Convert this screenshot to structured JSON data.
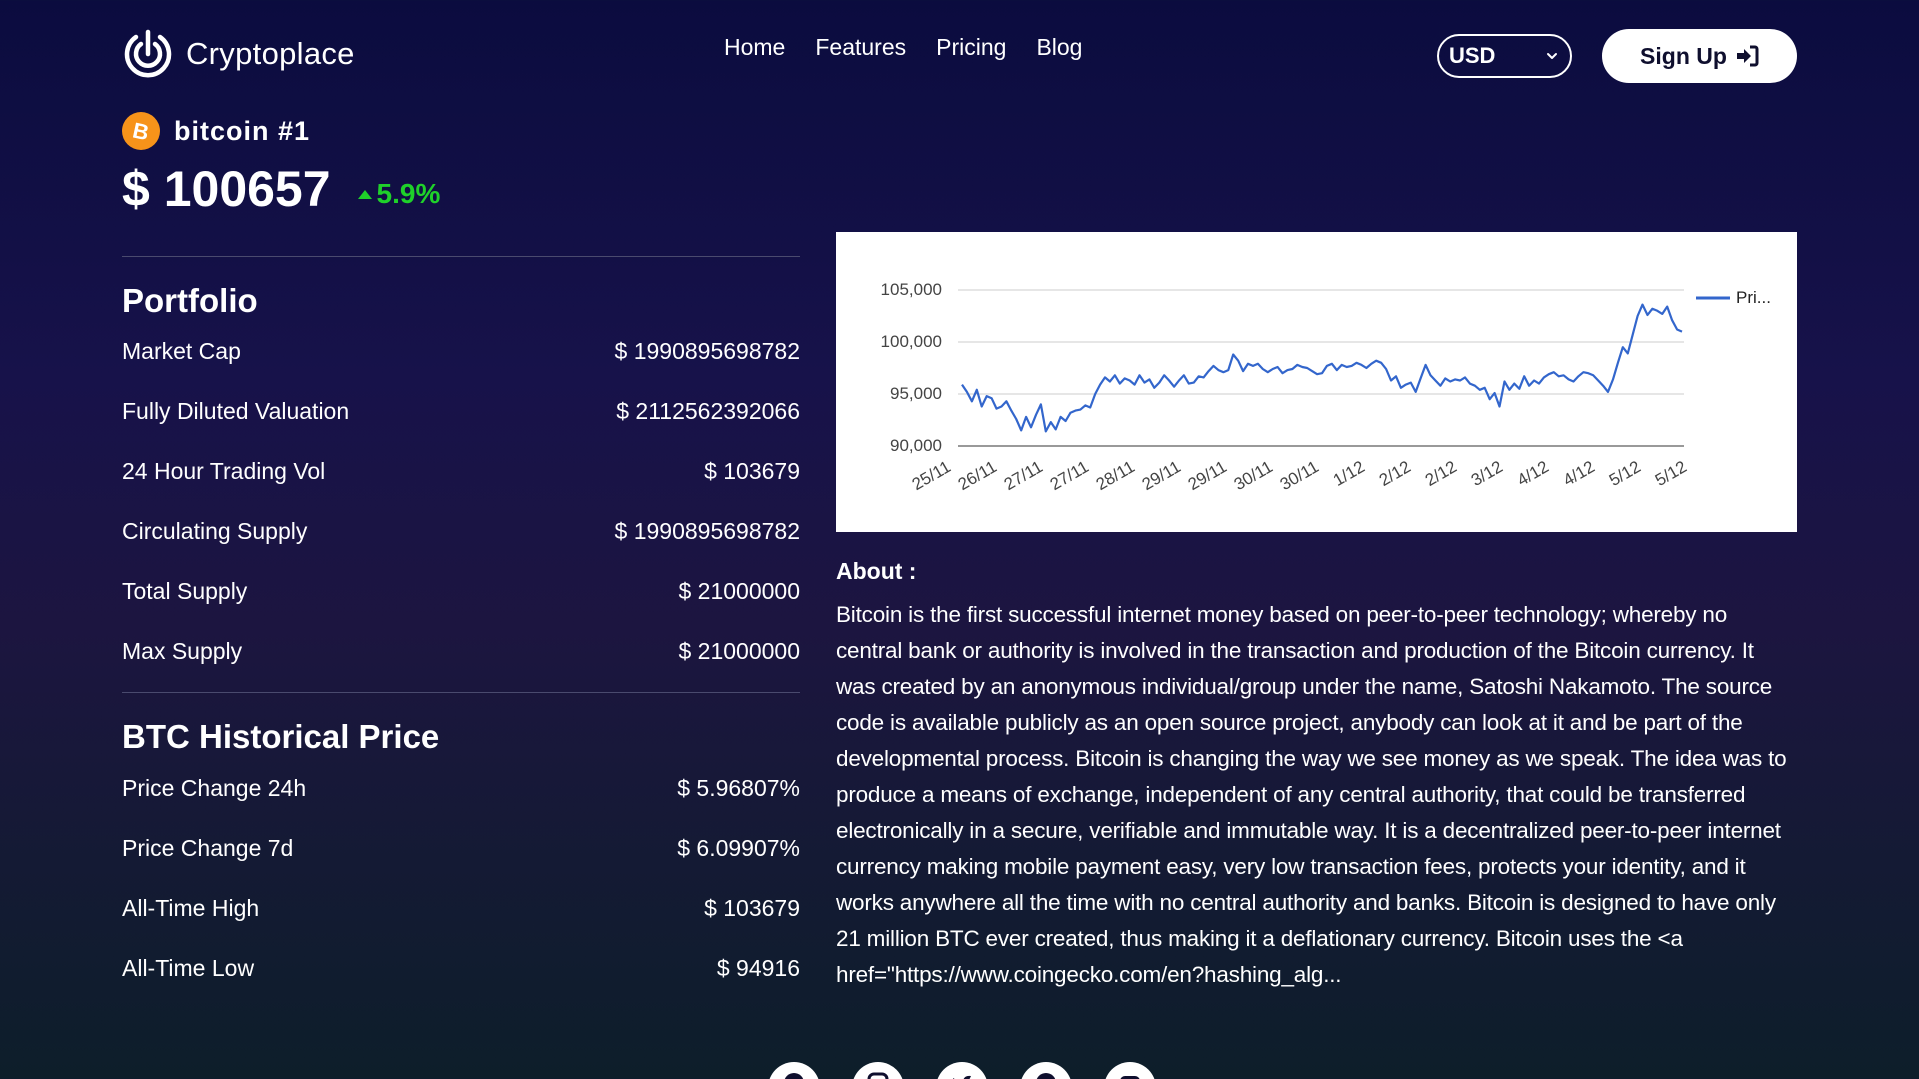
{
  "header": {
    "logo_text": "Cryptoplace",
    "nav": [
      "Home",
      "Features",
      "Pricing",
      "Blog"
    ],
    "currency": "USD",
    "signup_label": "Sign Up"
  },
  "coin": {
    "name": "bitcoin #1",
    "icon": "bitcoin-icon",
    "price": "$ 100657",
    "change": "5.9%",
    "change_color": "#1fd12a"
  },
  "portfolio": {
    "title": "Portfolio",
    "rows": [
      {
        "label": "Market Cap",
        "value": "$ 1990895698782"
      },
      {
        "label": "Fully Diluted Valuation",
        "value": "$ 2112562392066"
      },
      {
        "label": "24 Hour Trading Vol",
        "value": "$ 103679"
      },
      {
        "label": "Circulating Supply",
        "value": "$ 1990895698782"
      },
      {
        "label": "Total Supply",
        "value": "$ 21000000"
      },
      {
        "label": "Max Supply",
        "value": "$ 21000000"
      }
    ]
  },
  "history": {
    "title": "BTC Historical Price",
    "rows": [
      {
        "label": "Price Change 24h",
        "value": "$ 5.96807%"
      },
      {
        "label": "Price Change 7d",
        "value": "$ 6.09907%"
      },
      {
        "label": "All-Time High",
        "value": "$ 103679"
      },
      {
        "label": "All-Time Low",
        "value": "$ 94916"
      }
    ]
  },
  "about": {
    "title": "About :",
    "text": "Bitcoin is the first successful internet money based on peer-to-peer technology; whereby no central bank or authority is involved in the transaction and production of the Bitcoin currency. It was created by an anonymous individual/group under the name, Satoshi Nakamoto. The source code is available publicly as an open source project, anybody can look at it and be part of the developmental process.  Bitcoin is changing the way we see money as we speak. The idea was to produce a means of exchange, independent of any central authority, that could be transferred electronically in a secure, verifiable and immutable way. It is a decentralized peer-to-peer internet currency making mobile payment easy, very low transaction fees, protects your identity, and it works anywhere all the time with no central authority and banks.  Bitcoin is designed to have only 21 million BTC ever created, thus making it a deflationary currency. Bitcoin uses the <a href=\"https://www.coingecko.com/en?hashing_alg..."
  },
  "socials": [
    "facebook-icon",
    "instagram-icon",
    "twitter-icon",
    "pinterest-icon",
    "youtube-icon"
  ],
  "chart_data": {
    "type": "line",
    "title": "",
    "xlabel": "",
    "ylabel": "",
    "ylim": [
      90000,
      105000
    ],
    "yticks": [
      "90,000",
      "95,000",
      "100,000",
      "105,000"
    ],
    "xticks": [
      "25/11",
      "26/11",
      "27/11",
      "27/11",
      "28/11",
      "29/11",
      "29/11",
      "30/11",
      "30/11",
      "1/12",
      "2/12",
      "2/12",
      "3/12",
      "4/12",
      "4/12",
      "5/12",
      "5/12"
    ],
    "grid": true,
    "legend": "top-right",
    "series": [
      {
        "name": "Pri...",
        "color": "#3366cc",
        "values": [
          95900,
          95200,
          94300,
          95400,
          93800,
          94800,
          94600,
          93600,
          93800,
          94300,
          93400,
          92600,
          91500,
          92800,
          91800,
          93000,
          94000,
          91400,
          92300,
          91600,
          92800,
          92400,
          93200,
          93400,
          93500,
          93900,
          93700,
          95000,
          95900,
          96600,
          96200,
          96800,
          96000,
          96500,
          96300,
          95900,
          96800,
          96100,
          96400,
          95600,
          96100,
          96800,
          96300,
          95700,
          96300,
          96800,
          96000,
          96100,
          96700,
          96600,
          97200,
          97700,
          97300,
          97100,
          97300,
          98800,
          98200,
          97200,
          97900,
          97700,
          97900,
          97400,
          97100,
          97400,
          97600,
          97000,
          97300,
          97400,
          97800,
          97600,
          97500,
          97200,
          96900,
          97000,
          97700,
          97900,
          97300,
          97800,
          97600,
          97700,
          98000,
          97800,
          97500,
          97900,
          98200,
          98000,
          97400,
          96300,
          96700,
          95600,
          95900,
          96100,
          95200,
          96500,
          97800,
          96800,
          96300,
          95800,
          96500,
          96200,
          96400,
          96300,
          96600,
          96000,
          95800,
          95400,
          95600,
          94500,
          95100,
          93800,
          96200,
          95400,
          96000,
          95500,
          96700,
          95800,
          96300,
          96000,
          96600,
          96900,
          97100,
          96700,
          96800,
          96400,
          96200,
          96700,
          97100,
          97000,
          96800,
          96300,
          95800,
          95200,
          96400,
          98000,
          99500,
          98900,
          100700,
          102500,
          103600,
          102600,
          103200,
          103000,
          102700,
          103400,
          102100,
          101200,
          101000
        ]
      }
    ]
  }
}
